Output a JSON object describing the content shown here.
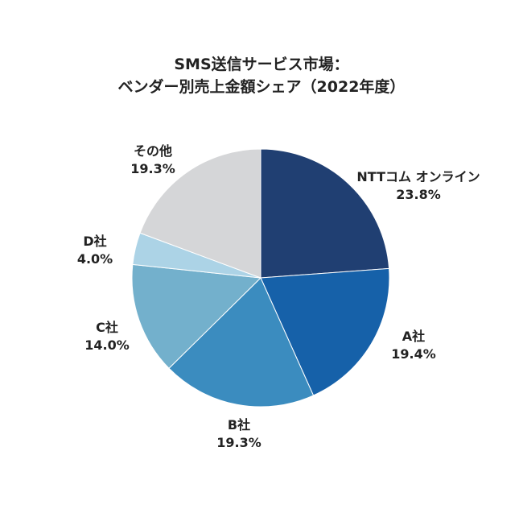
{
  "chart_data": {
    "type": "pie",
    "title": [
      "SMS送信サービス市場：",
      "ベンダー別売上金額シェア（2022年度）"
    ],
    "unit": "%",
    "slices": [
      {
        "label": "NTTコム オンライン",
        "value": 23.8,
        "value_text": "23.8%",
        "color": "#203f72"
      },
      {
        "label": "A社",
        "value": 19.4,
        "value_text": "19.4%",
        "color": "#1661a9"
      },
      {
        "label": "B社",
        "value": 19.3,
        "value_text": "19.3%",
        "color": "#3b8cbf"
      },
      {
        "label": "C社",
        "value": 14.0,
        "value_text": "14.0%",
        "color": "#73b0cc"
      },
      {
        "label": "D社",
        "value": 4.0,
        "value_text": "4.0%",
        "color": "#acd3e6"
      },
      {
        "label": "その他",
        "value": 19.3,
        "value_text": "19.3%",
        "color": "#d5d6d8"
      }
    ],
    "start": "12 o'clock",
    "direction": "clockwise"
  }
}
